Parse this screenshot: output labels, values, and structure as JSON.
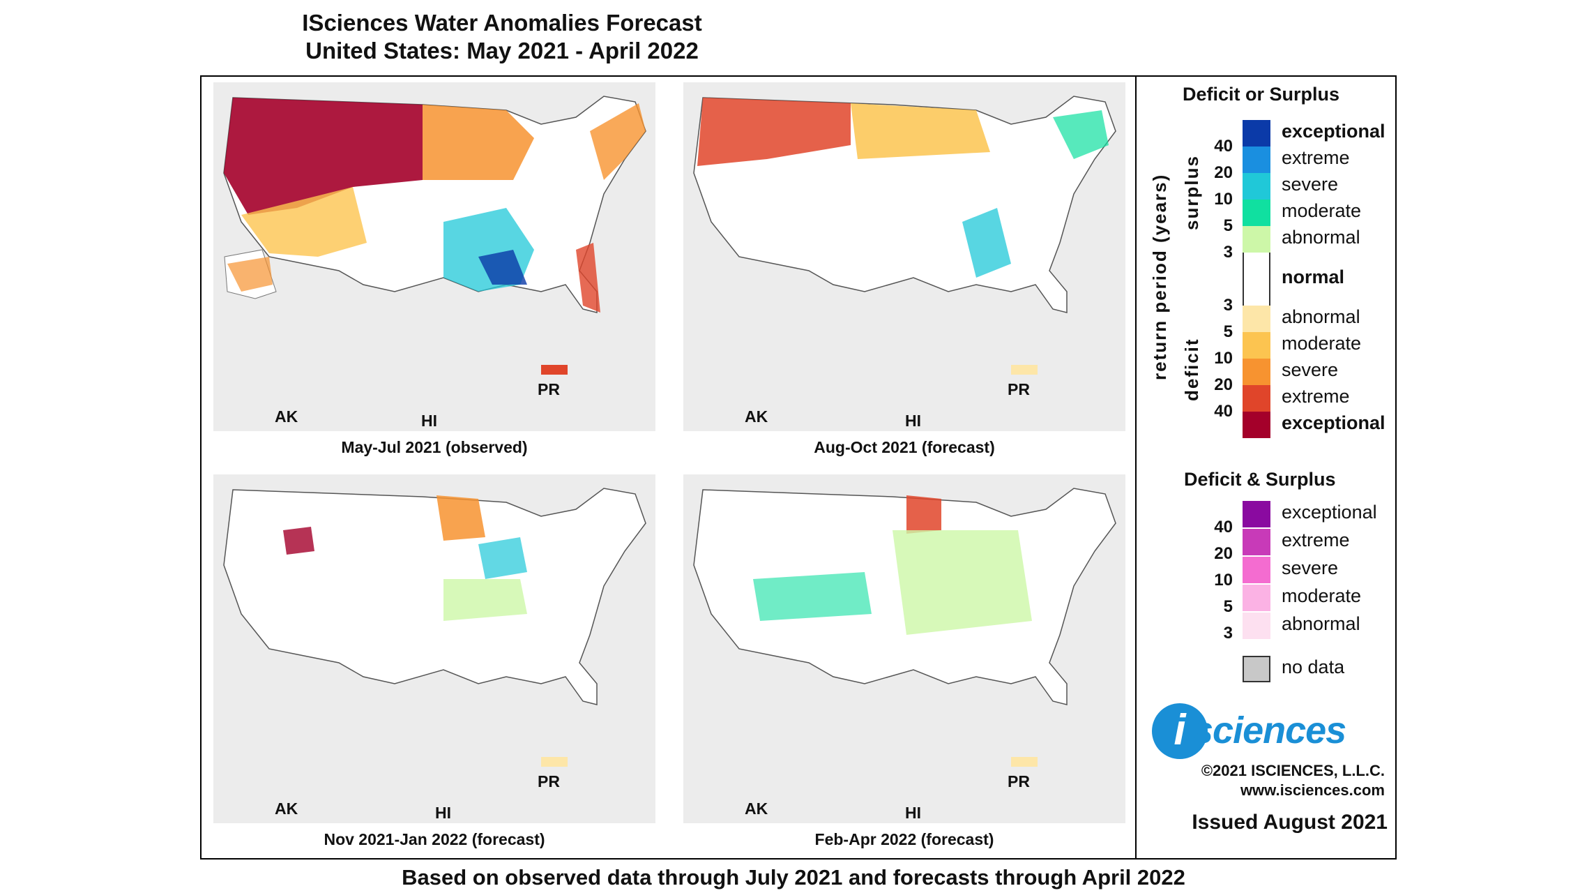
{
  "title_line1": "ISciences Water Anomalies Forecast",
  "title_line2": "United States: May 2021 - April 2022",
  "bottom_note": "Based on observed data through July 2021 and forecasts through April 2022",
  "panels": [
    {
      "caption": "May-Jul 2021 (observed)",
      "ak": "AK",
      "hi": "HI",
      "pr": "PR"
    },
    {
      "caption": "Aug-Oct 2021 (forecast)",
      "ak": "AK",
      "hi": "HI",
      "pr": "PR"
    },
    {
      "caption": "Nov 2021-Jan 2022 (forecast)",
      "ak": "AK",
      "hi": "HI",
      "pr": "PR"
    },
    {
      "caption": "Feb-Apr 2022 (forecast)",
      "ak": "AK",
      "hi": "HI",
      "pr": "PR"
    }
  ],
  "legend": {
    "heading1": "Deficit or Surplus",
    "axis_label": "return period (years)",
    "surplus_label": "surplus",
    "deficit_label": "deficit",
    "surplus_classes": [
      "exceptional",
      "extreme",
      "severe",
      "moderate",
      "abnormal"
    ],
    "surplus_colors": [
      "#0b3aa8",
      "#1a8fe0",
      "#20c8d8",
      "#10e0a0",
      "#cdf7a8"
    ],
    "normal_label": "normal",
    "deficit_classes": [
      "abnormal",
      "moderate",
      "severe",
      "extreme",
      "exceptional"
    ],
    "deficit_colors": [
      "#fde6a8",
      "#fcc450",
      "#f79330",
      "#e0452a",
      "#a4002a"
    ],
    "surplus_numbers": [
      "40",
      "20",
      "10",
      "5",
      "3"
    ],
    "deficit_numbers": [
      "3",
      "5",
      "10",
      "20",
      "40"
    ],
    "heading2": "Deficit & Surplus",
    "both_classes": [
      "exceptional",
      "extreme",
      "severe",
      "moderate",
      "abnormal"
    ],
    "both_colors": [
      "#8a0aa0",
      "#c83ab8",
      "#f46cd0",
      "#fbb2e4",
      "#fde0f0"
    ],
    "both_numbers": [
      "40",
      "20",
      "10",
      "5",
      "3"
    ],
    "nodata_label": "no data",
    "nodata_color": "#c8c8c8"
  },
  "logo_i": "i",
  "logo_text": "sciences",
  "copyright": "©2021 ISCIENCES, L.L.C.",
  "website": "www.isciences.com",
  "issued": "Issued August 2021"
}
